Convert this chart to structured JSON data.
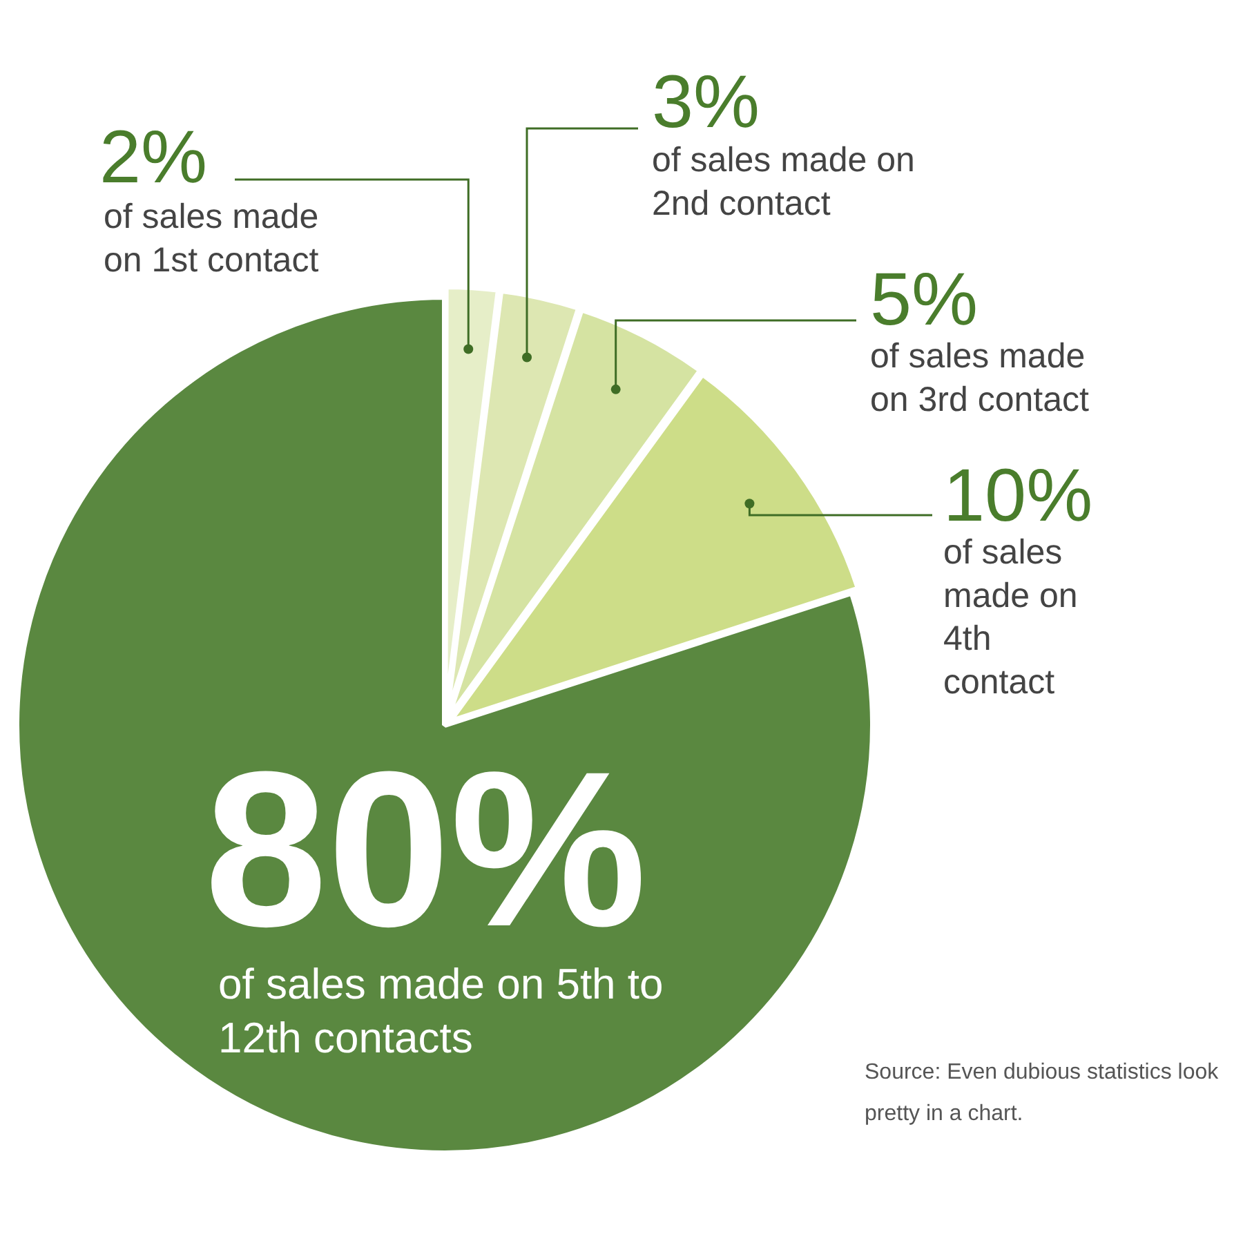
{
  "chart_data": {
    "type": "pie",
    "categories": [
      "of sales made on 1st contact",
      "of sales made on 2nd contact",
      "of sales made on 3rd contact",
      "of sales made on 4th contact",
      "of sales made on 5th to 12th contacts"
    ],
    "values": [
      2,
      3,
      5,
      10,
      80
    ],
    "colors": [
      "#e6eec8",
      "#dde7b2",
      "#d5e3a2",
      "#cddd88",
      "#5a8840"
    ],
    "value_labels": [
      "2%",
      "3%",
      "5%",
      "10%",
      "80%"
    ],
    "annotations": [
      "Source: Even dubious statistics look pretty in a chart."
    ]
  }
}
